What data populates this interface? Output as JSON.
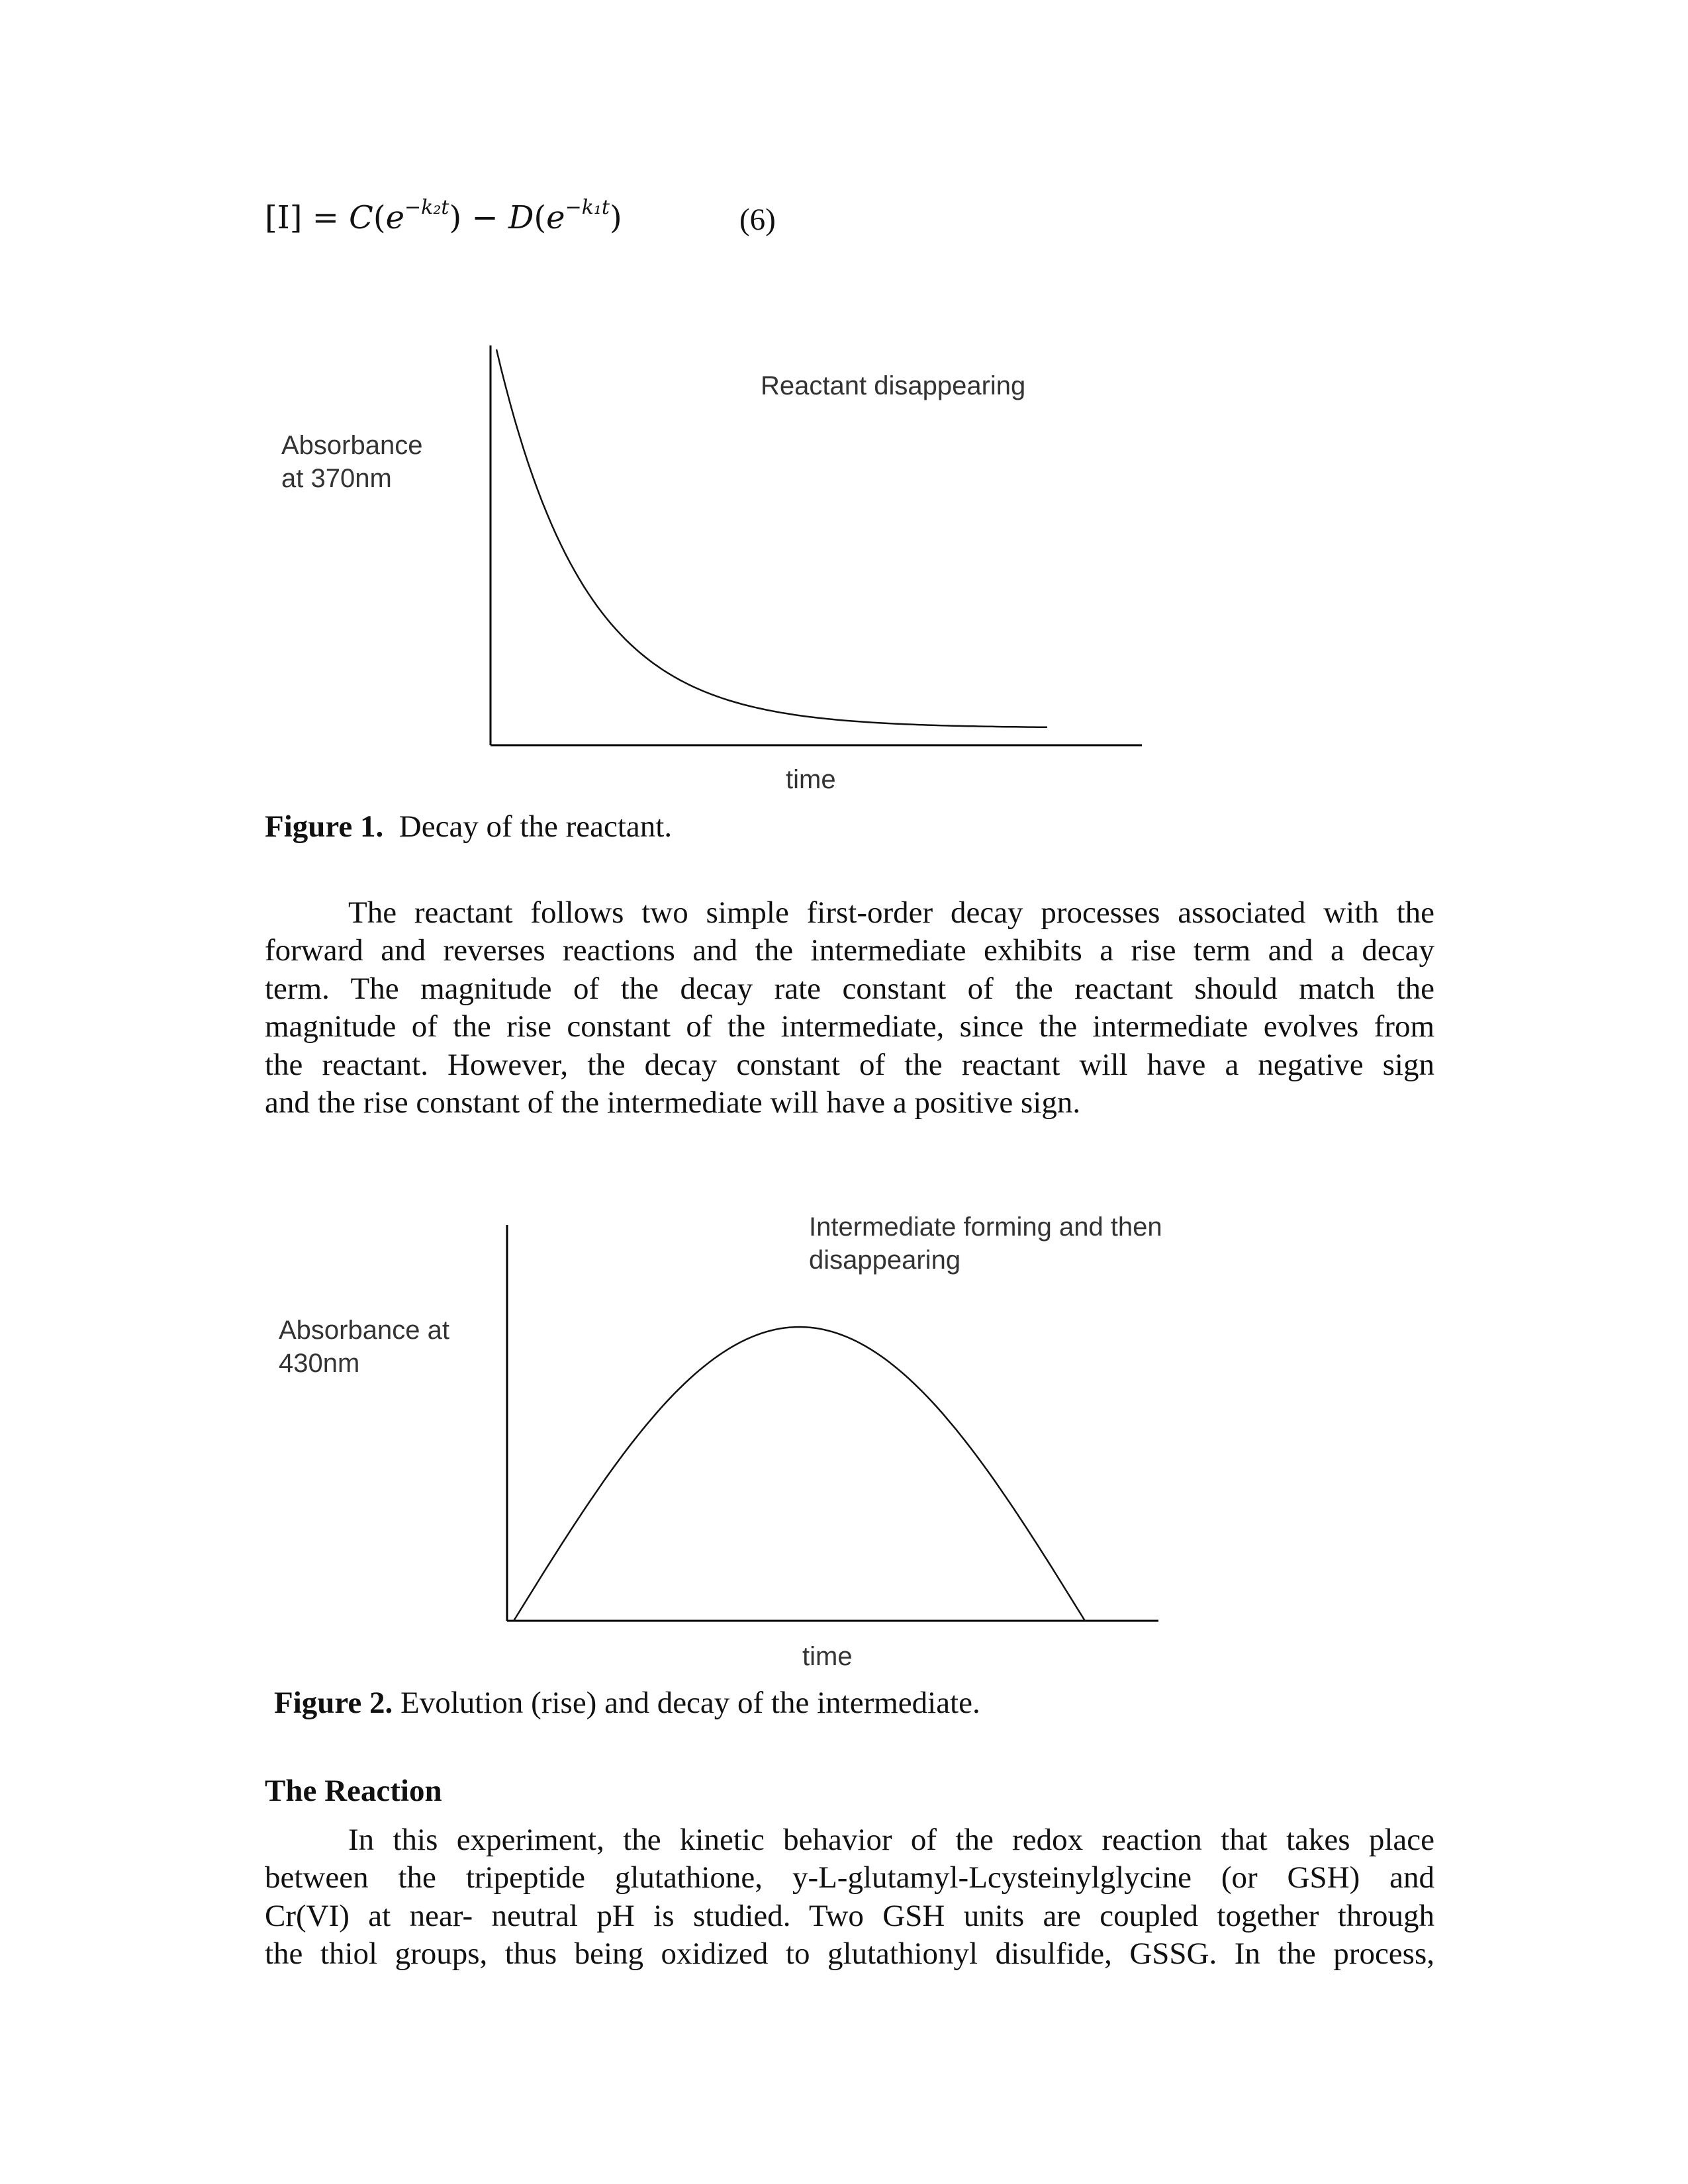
{
  "equation": {
    "lhs": "[I]",
    "eq": "=",
    "c": "C",
    "d": "D",
    "minus": "−",
    "exp2": "−k₂t",
    "exp1": "−k₁t",
    "number": "(6)"
  },
  "figure1": {
    "annotation": "Reactant disappearing",
    "ylabel_lines": [
      "Absorbance",
      "at 370nm"
    ],
    "xlabel": "time",
    "caption_label": "Figure 1.",
    "caption_text": "Decay of the reactant.",
    "curve": "exponential decay"
  },
  "paragraph1": [
    "The reactant follows two simple first-order decay processes associated with the",
    "forward and reverses reactions and the intermediate exhibits a rise term and a decay",
    "term.  The magnitude of the decay rate constant of the reactant should match the",
    "magnitude of the rise constant of the intermediate, since the intermediate evolves from",
    "the reactant.  However, the decay constant of the reactant will have a negative sign",
    "and the rise constant of the intermediate will have a positive sign."
  ],
  "figure2": {
    "annotation_lines": [
      "Intermediate forming and then",
      "disappearing"
    ],
    "ylabel_lines": [
      "Absorbance at",
      "430nm"
    ],
    "xlabel": "time",
    "caption_label": "Figure 2.",
    "caption_text": "Evolution (rise) and decay of the intermediate.",
    "curve": "rise then decay"
  },
  "section": {
    "heading": "The Reaction",
    "lines": [
      "In this experiment, the kinetic behavior of the redox reaction that takes place",
      "between the tripeptide glutathione, y-L-glutamyl-Lcysteinylglycine (or GSH) and",
      "Cr(VI) at near- neutral pH is studied.  Two GSH units are coupled together through",
      "the thiol groups, thus being oxidized to glutathionyl disulfide, GSSG.  In the process,"
    ]
  }
}
